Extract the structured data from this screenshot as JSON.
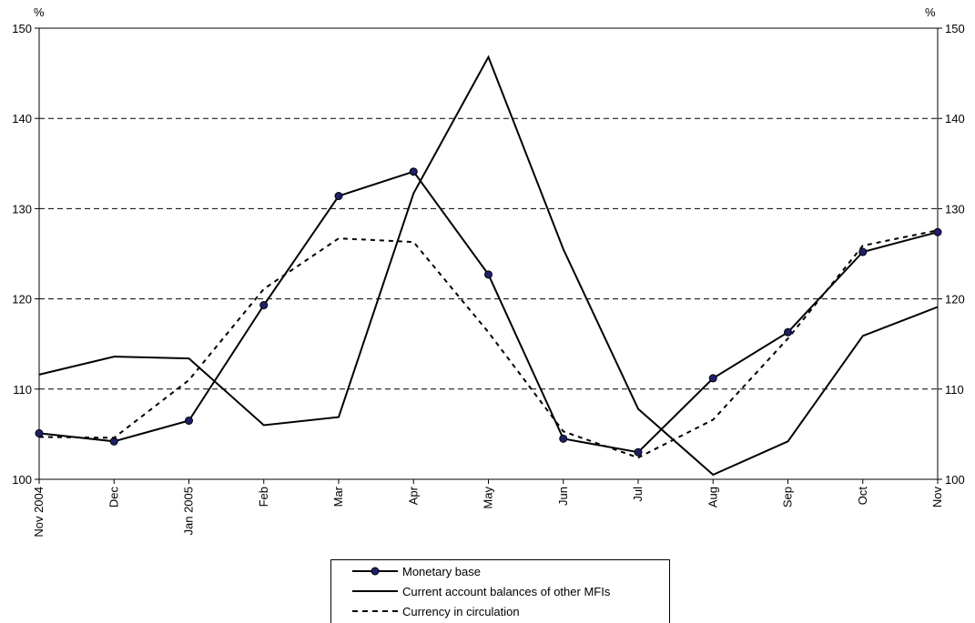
{
  "chart_data": {
    "type": "line",
    "categories": [
      "Nov 2004",
      "Dec",
      "Jan 2005",
      "Feb",
      "Mar",
      "Apr",
      "May",
      "Jun",
      "Jul",
      "Aug",
      "Sep",
      "Oct",
      "Nov"
    ],
    "ylabel_left": "%",
    "ylabel_right": "%",
    "ylim": [
      100,
      150
    ],
    "yticks": [
      100,
      110,
      120,
      130,
      140,
      150
    ],
    "grid": "horizontal-dashed",
    "legend_position": "bottom-center",
    "series": [
      {
        "name": "Monetary base",
        "style": "solid-markers",
        "values": [
          105.1,
          104.2,
          106.5,
          119.3,
          131.4,
          134.1,
          122.7,
          104.5,
          103.0,
          111.2,
          116.3,
          125.2,
          127.4
        ]
      },
      {
        "name": "Current account balances of other MFIs",
        "style": "solid",
        "values": [
          111.6,
          113.6,
          113.4,
          106.0,
          106.9,
          131.7,
          146.8,
          125.5,
          107.8,
          100.5,
          104.2,
          115.9,
          119.1
        ]
      },
      {
        "name": "Currency in circulation",
        "style": "dashed",
        "values": [
          104.7,
          104.6,
          111.0,
          121.1,
          126.7,
          126.3,
          116.3,
          105.3,
          102.4,
          106.6,
          115.6,
          125.9,
          127.6
        ]
      }
    ],
    "colors": {
      "line": "#000000",
      "marker": "#1f1f6e",
      "grid": "#000000"
    }
  }
}
